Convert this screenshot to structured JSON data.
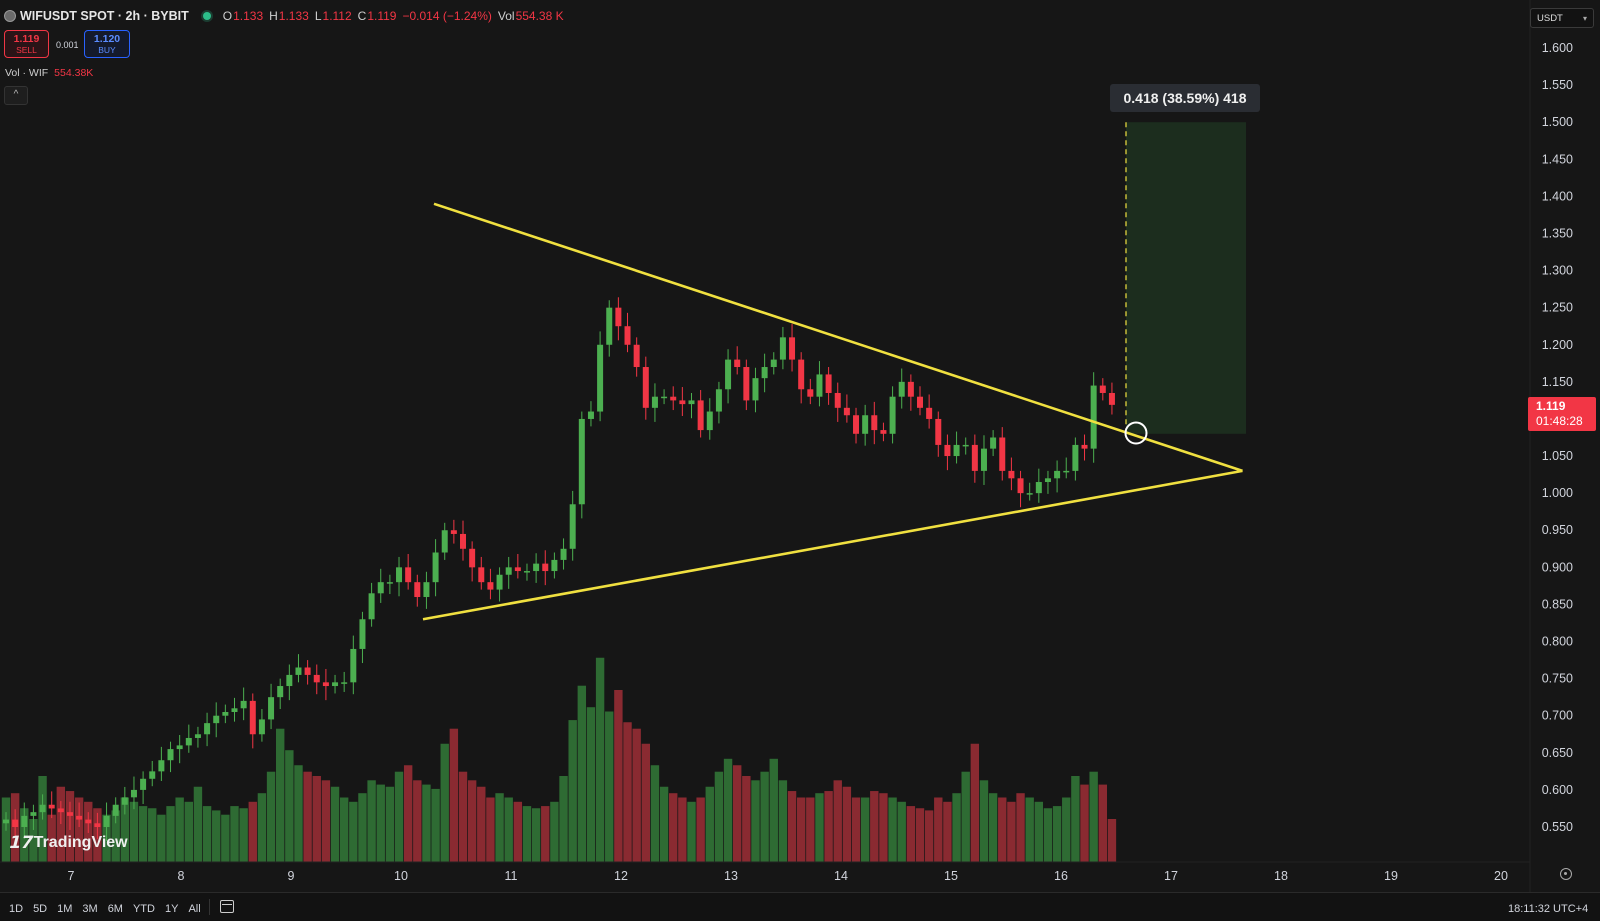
{
  "header": {
    "symbol": "WIFUSDT SPOT · 2h · BYBIT",
    "open_label": "O",
    "open": "1.133",
    "high_label": "H",
    "high": "1.133",
    "low_label": "L",
    "low": "1.112",
    "close_label": "C",
    "close": "1.119",
    "change": "−0.014 (−1.24%)",
    "vol_label": "Vol",
    "vol": "554.38 K"
  },
  "trade": {
    "sell_price": "1.119",
    "sell_label": "SELL",
    "spread": "0.001",
    "buy_price": "1.120",
    "buy_label": "BUY"
  },
  "volume_indicator": {
    "label": "Vol · WIF",
    "value": "554.38K"
  },
  "currency": "USDT",
  "price_tag": {
    "price": "1.119",
    "countdown": "01:48:28"
  },
  "measure_label": "0.418 (38.59%) 418",
  "logo": "TradingView",
  "range_buttons": [
    "1D",
    "5D",
    "1M",
    "3M",
    "6M",
    "YTD",
    "1Y",
    "All"
  ],
  "clock": "18:11:32 UTC+4",
  "colors": {
    "up": "#4caf50",
    "down": "#f23645",
    "trendline": "#f0e040",
    "background": "#161616"
  },
  "chart_data": {
    "type": "candlestick",
    "symbol": "WIFUSDT",
    "timeframe": "2h",
    "y_ticks": [
      "1.600",
      "1.550",
      "1.500",
      "1.450",
      "1.400",
      "1.350",
      "1.300",
      "1.250",
      "1.200",
      "1.150",
      "1.100",
      "1.050",
      "1.000",
      "0.950",
      "0.900",
      "0.850",
      "0.800",
      "0.750",
      "0.700",
      "0.650",
      "0.600",
      "0.550"
    ],
    "x_ticks": [
      "7",
      "8",
      "9",
      "10",
      "11",
      "12",
      "13",
      "14",
      "15",
      "16",
      "17",
      "18",
      "19",
      "20"
    ],
    "ylim": [
      0.52,
      1.62
    ],
    "closes": [
      0.56,
      0.55,
      0.565,
      0.57,
      0.58,
      0.575,
      0.57,
      0.565,
      0.56,
      0.555,
      0.55,
      0.565,
      0.58,
      0.59,
      0.6,
      0.615,
      0.625,
      0.64,
      0.655,
      0.66,
      0.67,
      0.675,
      0.69,
      0.7,
      0.705,
      0.71,
      0.72,
      0.675,
      0.695,
      0.725,
      0.74,
      0.755,
      0.765,
      0.755,
      0.745,
      0.74,
      0.745,
      0.745,
      0.79,
      0.83,
      0.865,
      0.88,
      0.88,
      0.9,
      0.88,
      0.86,
      0.88,
      0.92,
      0.95,
      0.945,
      0.925,
      0.9,
      0.88,
      0.87,
      0.89,
      0.9,
      0.895,
      0.895,
      0.905,
      0.895,
      0.91,
      0.925,
      0.985,
      1.1,
      1.11,
      1.2,
      1.25,
      1.225,
      1.2,
      1.17,
      1.115,
      1.13,
      1.13,
      1.125,
      1.12,
      1.125,
      1.085,
      1.11,
      1.14,
      1.18,
      1.17,
      1.125,
      1.155,
      1.17,
      1.18,
      1.21,
      1.18,
      1.14,
      1.13,
      1.16,
      1.135,
      1.115,
      1.105,
      1.08,
      1.105,
      1.085,
      1.08,
      1.13,
      1.15,
      1.13,
      1.115,
      1.1,
      1.065,
      1.05,
      1.065,
      1.065,
      1.03,
      1.06,
      1.075,
      1.03,
      1.02,
      1.0,
      1.0,
      1.015,
      1.02,
      1.03,
      1.03,
      1.065,
      1.06,
      1.145,
      1.135,
      1.119
    ],
    "volume": {
      "name": "Vol · WIF",
      "values": [
        0.3,
        0.32,
        0.25,
        0.2,
        0.4,
        0.22,
        0.35,
        0.33,
        0.3,
        0.28,
        0.25,
        0.22,
        0.24,
        0.3,
        0.28,
        0.26,
        0.25,
        0.22,
        0.26,
        0.3,
        0.28,
        0.35,
        0.26,
        0.24,
        0.22,
        0.26,
        0.25,
        0.28,
        0.32,
        0.42,
        0.62,
        0.52,
        0.45,
        0.42,
        0.4,
        0.38,
        0.35,
        0.3,
        0.28,
        0.32,
        0.38,
        0.36,
        0.35,
        0.42,
        0.45,
        0.38,
        0.36,
        0.34,
        0.55,
        0.62,
        0.42,
        0.38,
        0.35,
        0.3,
        0.32,
        0.3,
        0.28,
        0.26,
        0.25,
        0.26,
        0.28,
        0.4,
        0.66,
        0.82,
        0.72,
        0.95,
        0.7,
        0.8,
        0.65,
        0.62,
        0.55,
        0.45,
        0.35,
        0.32,
        0.3,
        0.28,
        0.3,
        0.35,
        0.42,
        0.48,
        0.45,
        0.4,
        0.38,
        0.42,
        0.48,
        0.38,
        0.33,
        0.3,
        0.3,
        0.32,
        0.33,
        0.38,
        0.35,
        0.3,
        0.3,
        0.33,
        0.32,
        0.3,
        0.28,
        0.26,
        0.25,
        0.24,
        0.3,
        0.28,
        0.32,
        0.42,
        0.55,
        0.38,
        0.32,
        0.3,
        0.28,
        0.32,
        0.3,
        0.28,
        0.25,
        0.26,
        0.3,
        0.4,
        0.36,
        0.42,
        0.36,
        0.2
      ]
    },
    "triangle": {
      "upper_line": {
        "from": [
          "10.3",
          1.39
        ],
        "to": [
          "17.65",
          1.03
        ]
      },
      "lower_line": {
        "from": [
          "10.2",
          0.83
        ],
        "to": [
          "17.65",
          1.03
        ]
      }
    },
    "projection": {
      "top": 1.5,
      "bottom": 1.08,
      "label": "0.418 (38.59%) 418"
    }
  }
}
